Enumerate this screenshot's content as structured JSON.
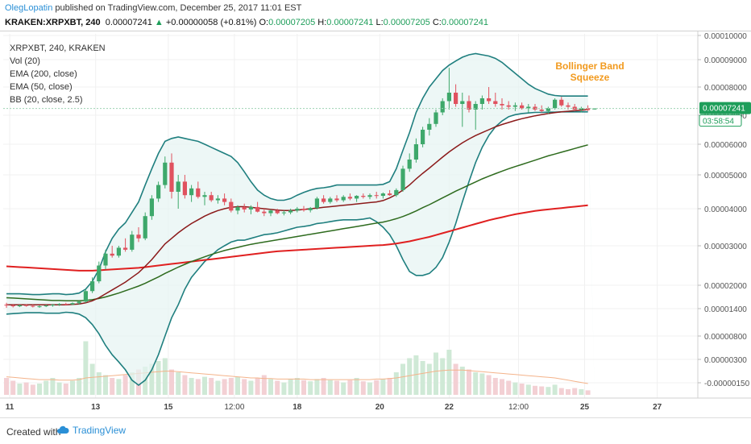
{
  "header": {
    "author": "OlegLopatin",
    "published": " published on TradingView.com, December 25, 2017 11:01 EST",
    "symbol": "KRAKEN:XRPXBT, 240",
    "last": "0.00007241",
    "arrow": "▲",
    "change": "+0.00000058 (+0.81%)",
    "o_label": "O:",
    "o_val": "0.00007205",
    "h_label": "H:",
    "h_val": "0.00007241",
    "l_label": "L:",
    "l_val": "0.00007205",
    "c_label": "C:",
    "c_val": "0.00007241"
  },
  "legend": {
    "title": "XRPXBT, 240, KRAKEN",
    "vol": "Vol (20)",
    "ema200": "EMA (200, close)",
    "ema50": "EMA (50, close)",
    "bb": "BB (20, close, 2.5)"
  },
  "annotation": {
    "line1": "Bollinger Band",
    "line2": "Squeeze",
    "color": "#f29a1e"
  },
  "price_tag": {
    "value": "0.00007241",
    "countdown": "03:58:54",
    "color": "#1e9e5a"
  },
  "footer": {
    "created": "Created with",
    "brand": "TradingView"
  },
  "colors": {
    "bull": "#3ea86b",
    "bear": "#e0525f",
    "bb": "#1f7f7f",
    "bb_fill": "#e6f4f2",
    "basis": "#8b1a1a",
    "ema50": "#2e6b1e",
    "ema200": "#e02020",
    "vol_ma": "#f4b38a"
  },
  "chart_data": {
    "type": "candlestick",
    "x_ticks": [
      "11",
      "13",
      "15",
      "12:00",
      "18",
      "20",
      "22",
      "12:00",
      "25",
      "27"
    ],
    "x_tick_pos": [
      0.5,
      13.5,
      24.5,
      34.5,
      44,
      56.5,
      67,
      77.5,
      87.5,
      98.5
    ],
    "y_ticks": [
      {
        "label": "0.00010000",
        "v": 0.0001
      },
      {
        "label": "0.00009000",
        "v": 9e-05
      },
      {
        "label": "0.00008000",
        "v": 8e-05
      },
      {
        "label": "0.00007000",
        "v": 7e-05
      },
      {
        "label": "0.00006000",
        "v": 6e-05
      },
      {
        "label": "0.00005000",
        "v": 5e-05
      },
      {
        "label": "0.00004000",
        "v": 4e-05
      },
      {
        "label": "0.00003000",
        "v": 3e-05
      },
      {
        "label": "0.00002000",
        "v": 2e-05
      },
      {
        "label": "0.00001400",
        "v": 1.4e-05
      },
      {
        "label": "0.00000800",
        "v": 8e-06
      },
      {
        "label": "0.00000300",
        "v": 3e-06
      },
      {
        "label": "-0.00000150",
        "v": -1.5e-06
      }
    ],
    "candles": [
      [
        1.5e-05,
        1.55e-05,
        1.42e-05,
        1.48e-05
      ],
      [
        1.48e-05,
        1.52e-05,
        1.43e-05,
        1.46e-05
      ],
      [
        1.46e-05,
        1.5e-05,
        1.44e-05,
        1.49e-05
      ],
      [
        1.49e-05,
        1.51e-05,
        1.45e-05,
        1.47e-05
      ],
      [
        1.47e-05,
        1.5e-05,
        1.43e-05,
        1.45e-05
      ],
      [
        1.45e-05,
        1.48e-05,
        1.42e-05,
        1.46e-05
      ],
      [
        1.46e-05,
        1.5e-05,
        1.44e-05,
        1.48e-05
      ],
      [
        1.48e-05,
        1.52e-05,
        1.45e-05,
        1.5e-05
      ],
      [
        1.5e-05,
        1.54e-05,
        1.47e-05,
        1.52e-05
      ],
      [
        1.52e-05,
        1.55e-05,
        1.48e-05,
        1.51e-05
      ],
      [
        1.51e-05,
        1.56e-05,
        1.49e-05,
        1.54e-05
      ],
      [
        1.54e-05,
        1.6e-05,
        1.5e-05,
        1.58e-05
      ],
      [
        1.58e-05,
        1.9e-05,
        1.55e-05,
        1.85e-05
      ],
      [
        1.85e-05,
        2.2e-05,
        1.8e-05,
        2.1e-05
      ],
      [
        2.1e-05,
        2.6e-05,
        2.05e-05,
        2.5e-05
      ],
      [
        2.5e-05,
        2.9e-05,
        2.4e-05,
        2.8e-05
      ],
      [
        2.8e-05,
        3e-05,
        2.7e-05,
        2.75e-05
      ],
      [
        2.75e-05,
        3e-05,
        2.7e-05,
        2.95e-05
      ],
      [
        2.95e-05,
        3.2e-05,
        2.85e-05,
        2.9e-05
      ],
      [
        2.9e-05,
        3.4e-05,
        2.85e-05,
        3.3e-05
      ],
      [
        3.3e-05,
        3.5e-05,
        3.1e-05,
        3.2e-05
      ],
      [
        3.2e-05,
        3.9e-05,
        3.15e-05,
        3.8e-05
      ],
      [
        3.8e-05,
        4.4e-05,
        3.7e-05,
        4.3e-05
      ],
      [
        4.3e-05,
        4.8e-05,
        4.2e-05,
        4.7e-05
      ],
      [
        4.7e-05,
        5.6e-05,
        4.6e-05,
        5.4e-05
      ],
      [
        5.4e-05,
        5.7e-05,
        4.3e-05,
        4.5e-05
      ],
      [
        4.5e-05,
        5e-05,
        4e-05,
        4.8e-05
      ],
      [
        4.8e-05,
        5e-05,
        4.3e-05,
        4.4e-05
      ],
      [
        4.4e-05,
        4.7e-05,
        4.2e-05,
        4.6e-05
      ],
      [
        4.6e-05,
        4.8e-05,
        4.3e-05,
        4.35e-05
      ],
      [
        4.35e-05,
        4.5e-05,
        4.1e-05,
        4.4e-05
      ],
      [
        4.4e-05,
        4.5e-05,
        4.2e-05,
        4.25e-05
      ],
      [
        4.25e-05,
        4.4e-05,
        4.15e-05,
        4.3e-05
      ],
      [
        4.3e-05,
        4.45e-05,
        4.1e-05,
        4.2e-05
      ],
      [
        4.2e-05,
        4.3e-05,
        3.9e-05,
        3.95e-05
      ],
      [
        3.95e-05,
        4.1e-05,
        3.85e-05,
        4.05e-05
      ],
      [
        4.05e-05,
        4.15e-05,
        3.9e-05,
        3.98e-05
      ],
      [
        3.98e-05,
        4.1e-05,
        3.85e-05,
        4.05e-05
      ],
      [
        4.05e-05,
        4.2e-05,
        3.9e-05,
        3.92e-05
      ],
      [
        3.92e-05,
        4e-05,
        3.8e-05,
        3.88e-05
      ],
      [
        3.88e-05,
        3.98e-05,
        3.8e-05,
        3.95e-05
      ],
      [
        3.95e-05,
        4e-05,
        3.85e-05,
        3.88e-05
      ],
      [
        3.88e-05,
        3.95e-05,
        3.82e-05,
        3.9e-05
      ],
      [
        3.9e-05,
        4e-05,
        3.85e-05,
        3.95e-05
      ],
      [
        3.95e-05,
        4.05e-05,
        3.9e-05,
        4e-05
      ],
      [
        4e-05,
        4.08e-05,
        3.92e-05,
        3.96e-05
      ],
      [
        3.96e-05,
        4.05e-05,
        3.9e-05,
        4.02e-05
      ],
      [
        4.02e-05,
        4.35e-05,
        3.98e-05,
        4.3e-05
      ],
      [
        4.3e-05,
        4.4e-05,
        4.15e-05,
        4.2e-05
      ],
      [
        4.2e-05,
        4.35e-05,
        4.15e-05,
        4.3e-05
      ],
      [
        4.3e-05,
        4.4e-05,
        4.2e-05,
        4.25e-05
      ],
      [
        4.25e-05,
        4.4e-05,
        4.2e-05,
        4.35e-05
      ],
      [
        4.35e-05,
        4.45e-05,
        4.25e-05,
        4.3e-05
      ],
      [
        4.3e-05,
        4.4e-05,
        4.2e-05,
        4.38e-05
      ],
      [
        4.38e-05,
        4.45e-05,
        4.3e-05,
        4.35e-05
      ],
      [
        4.35e-05,
        4.45e-05,
        4.28e-05,
        4.4e-05
      ],
      [
        4.4e-05,
        4.5e-05,
        4.3e-05,
        4.38e-05
      ],
      [
        4.38e-05,
        4.48e-05,
        4.3e-05,
        4.45e-05
      ],
      [
        4.45e-05,
        4.55e-05,
        4.38e-05,
        4.4e-05
      ],
      [
        4.4e-05,
        4.6e-05,
        4.35e-05,
        4.55e-05
      ],
      [
        4.55e-05,
        5.3e-05,
        4.5e-05,
        5.2e-05
      ],
      [
        5.2e-05,
        5.7e-05,
        5.1e-05,
        5.5e-05
      ],
      [
        5.5e-05,
        6.2e-05,
        5.4e-05,
        6e-05
      ],
      [
        6e-05,
        6.6e-05,
        5.9e-05,
        6.5e-05
      ],
      [
        6.5e-05,
        6.9e-05,
        6.3e-05,
        6.7e-05
      ],
      [
        6.7e-05,
        7.2e-05,
        6.6e-05,
        7.1e-05
      ],
      [
        7.1e-05,
        7.6e-05,
        7e-05,
        7.5e-05
      ],
      [
        7.5e-05,
        8.7e-05,
        7.2e-05,
        7.8e-05
      ],
      [
        7.8e-05,
        8.1e-05,
        7.3e-05,
        7.4e-05
      ],
      [
        7.4e-05,
        7.8e-05,
        6.6e-05,
        7.5e-05
      ],
      [
        7.5e-05,
        7.7e-05,
        7.1e-05,
        7.2e-05
      ],
      [
        7.2e-05,
        7.5e-05,
        6.5e-05,
        7.4e-05
      ],
      [
        7.4e-05,
        7.7e-05,
        7.2e-05,
        7.6e-05
      ],
      [
        7.6e-05,
        8e-05,
        7.4e-05,
        7.5e-05
      ],
      [
        7.5e-05,
        7.8e-05,
        7.3e-05,
        7.4e-05
      ],
      [
        7.4e-05,
        7.6e-05,
        7.2e-05,
        7.35e-05
      ],
      [
        7.35e-05,
        7.5e-05,
        7.2e-05,
        7.3e-05
      ],
      [
        7.3e-05,
        7.45e-05,
        7.15e-05,
        7.35e-05
      ],
      [
        7.35e-05,
        7.45e-05,
        7.2e-05,
        7.25e-05
      ],
      [
        7.25e-05,
        7.4e-05,
        7.1e-05,
        7.3e-05
      ],
      [
        7.3e-05,
        7.4e-05,
        7.15e-05,
        7.2e-05
      ],
      [
        7.2e-05,
        7.35e-05,
        7.1e-05,
        7.15e-05
      ],
      [
        7.15e-05,
        7.3e-05,
        7.05e-05,
        7.25e-05
      ],
      [
        7.25e-05,
        7.6e-05,
        7.2e-05,
        7.55e-05
      ],
      [
        7.55e-05,
        7.65e-05,
        7.3e-05,
        7.35e-05
      ],
      [
        7.35e-05,
        7.45e-05,
        7.2e-05,
        7.3e-05
      ],
      [
        7.3e-05,
        7.4e-05,
        7.15e-05,
        7.2e-05
      ],
      [
        7.2e-05,
        7.3e-05,
        7.1e-05,
        7.25e-05
      ],
      [
        7.25e-05,
        7.35e-05,
        7.15e-05,
        7.183e-05
      ],
      [
        7.205e-05,
        7.241e-05,
        7.205e-05,
        7.241e-05
      ]
    ],
    "bb_upper": [
      1.78e-05,
      1.78e-05,
      1.78e-05,
      1.77e-05,
      1.76e-05,
      1.76e-05,
      1.77e-05,
      1.78e-05,
      1.78e-05,
      1.76e-05,
      1.77e-05,
      1.8e-05,
      1.9e-05,
      2.1e-05,
      2.4e-05,
      2.85e-05,
      3.2e-05,
      3.45e-05,
      3.62e-05,
      3.9e-05,
      4.2e-05,
      4.7e-05,
      5.2e-05,
      5.7e-05,
      6.1e-05,
      6.2e-05,
      6.25e-05,
      6.2e-05,
      6.15e-05,
      6.1e-05,
      6e-05,
      5.9e-05,
      5.8e-05,
      5.7e-05,
      5.6e-05,
      5.4e-05,
      5.1e-05,
      4.8e-05,
      4.55e-05,
      4.4e-05,
      4.3e-05,
      4.25e-05,
      4.25e-05,
      4.3e-05,
      4.4e-05,
      4.48e-05,
      4.55e-05,
      4.6e-05,
      4.62e-05,
      4.65e-05,
      4.7e-05,
      4.7e-05,
      4.7e-05,
      4.7e-05,
      4.7e-05,
      4.7e-05,
      4.7e-05,
      4.72e-05,
      4.8e-05,
      5.2e-05,
      5.8e-05,
      6.4e-05,
      7.1e-05,
      7.6e-05,
      8e-05,
      8.3e-05,
      8.6e-05,
      8.8e-05,
      8.95e-05,
      9.1e-05,
      9.2e-05,
      9.25e-05,
      9.2e-05,
      9.15e-05,
      9.05e-05,
      8.9e-05,
      8.7e-05,
      8.5e-05,
      8.3e-05,
      8.1e-05,
      7.95e-05,
      7.85e-05,
      7.75e-05,
      7.7e-05,
      7.68e-05,
      7.68e-05,
      7.68e-05,
      7.68e-05,
      7.68e-05
    ],
    "bb_lower": [
      1.28e-05,
      1.29e-05,
      1.3e-05,
      1.31e-05,
      1.31e-05,
      1.31e-05,
      1.3e-05,
      1.3e-05,
      1.3e-05,
      1.32e-05,
      1.31e-05,
      1.28e-05,
      1.2e-05,
      1.05e-05,
      8.5e-06,
      6e-06,
      4e-06,
      2.5e-06,
      1e-06,
      -1e-06,
      -2e-06,
      -1e-06,
      1e-06,
      4e-06,
      8e-06,
      1.2e-05,
      1.5e-05,
      1.9e-05,
      2.2e-05,
      2.4e-05,
      2.6e-05,
      2.75e-05,
      2.9e-05,
      3e-05,
      3.1e-05,
      3.15e-05,
      3.15e-05,
      3.2e-05,
      3.25e-05,
      3.3e-05,
      3.32e-05,
      3.35e-05,
      3.4e-05,
      3.45e-05,
      3.5e-05,
      3.52e-05,
      3.55e-05,
      3.6e-05,
      3.62e-05,
      3.65e-05,
      3.68e-05,
      3.7e-05,
      3.7e-05,
      3.7e-05,
      3.72e-05,
      3.75e-05,
      3.65e-05,
      3.5e-05,
      3.3e-05,
      3e-05,
      2.65e-05,
      2.35e-05,
      2.25e-05,
      2.25e-05,
      2.3e-05,
      2.45e-05,
      2.7e-05,
      3.1e-05,
      3.6e-05,
      4.2e-05,
      4.8e-05,
      5.4e-05,
      5.9e-05,
      6.3e-05,
      6.6e-05,
      6.8e-05,
      6.95e-05,
      7.02e-05,
      7.06e-05,
      7.08e-05,
      7.1e-05,
      7.1e-05,
      7.11e-05,
      7.11e-05,
      7.12e-05,
      7.12e-05,
      7.12e-05,
      7.12e-05,
      7.12e-05
    ],
    "bb_basis": [
      1.5e-05,
      1.5e-05,
      1.5e-05,
      1.5e-05,
      1.5e-05,
      1.5e-05,
      1.5e-05,
      1.5e-05,
      1.5e-05,
      1.5e-05,
      1.51e-05,
      1.52e-05,
      1.55e-05,
      1.6e-05,
      1.68e-05,
      1.78e-05,
      1.88e-05,
      1.98e-05,
      2.08e-05,
      2.2e-05,
      2.32e-05,
      2.48e-05,
      2.65e-05,
      2.85e-05,
      3.05e-05,
      3.2e-05,
      3.35e-05,
      3.48e-05,
      3.6e-05,
      3.7e-05,
      3.8e-05,
      3.88e-05,
      3.95e-05,
      4e-05,
      4.04e-05,
      4.06e-05,
      4.06e-05,
      4.04e-05,
      4.02e-05,
      4e-05,
      3.98e-05,
      3.96e-05,
      3.95e-05,
      3.95e-05,
      3.96e-05,
      3.98e-05,
      4e-05,
      4.02e-05,
      4.04e-05,
      4.06e-05,
      4.08e-05,
      4.1e-05,
      4.12e-05,
      4.14e-05,
      4.16e-05,
      4.18e-05,
      4.2e-05,
      4.24e-05,
      4.32e-05,
      4.42e-05,
      4.55e-05,
      4.7e-05,
      4.88e-05,
      5.05e-05,
      5.22e-05,
      5.4e-05,
      5.58e-05,
      5.75e-05,
      5.9e-05,
      6.05e-05,
      6.18e-05,
      6.3e-05,
      6.4e-05,
      6.5e-05,
      6.6e-05,
      6.68e-05,
      6.75e-05,
      6.82e-05,
      6.88e-05,
      6.93e-05,
      6.98e-05,
      7.02e-05,
      7.06e-05,
      7.09e-05,
      7.12e-05,
      7.14e-05,
      7.16e-05,
      7.18e-05,
      7.2e-05
    ],
    "ema50": [
      1.68e-05,
      1.67e-05,
      1.66e-05,
      1.65e-05,
      1.64e-05,
      1.63e-05,
      1.62e-05,
      1.61e-05,
      1.61e-05,
      1.6e-05,
      1.6e-05,
      1.6e-05,
      1.61e-05,
      1.63e-05,
      1.66e-05,
      1.7e-05,
      1.75e-05,
      1.8e-05,
      1.86e-05,
      1.92e-05,
      1.98e-05,
      2.05e-05,
      2.13e-05,
      2.21e-05,
      2.3e-05,
      2.38e-05,
      2.46e-05,
      2.53e-05,
      2.6e-05,
      2.66e-05,
      2.72e-05,
      2.78e-05,
      2.83e-05,
      2.88e-05,
      2.92e-05,
      2.96e-05,
      3e-05,
      3.04e-05,
      3.07e-05,
      3.1e-05,
      3.13e-05,
      3.16e-05,
      3.19e-05,
      3.22e-05,
      3.25e-05,
      3.28e-05,
      3.31e-05,
      3.34e-05,
      3.37e-05,
      3.4e-05,
      3.43e-05,
      3.46e-05,
      3.49e-05,
      3.52e-05,
      3.55e-05,
      3.58e-05,
      3.61e-05,
      3.64e-05,
      3.68e-05,
      3.73e-05,
      3.79e-05,
      3.86e-05,
      3.94e-05,
      4.03e-05,
      4.12e-05,
      4.22e-05,
      4.32e-05,
      4.42e-05,
      4.52e-05,
      4.61e-05,
      4.7e-05,
      4.79e-05,
      4.88e-05,
      4.96e-05,
      5.04e-05,
      5.12e-05,
      5.2e-05,
      5.27e-05,
      5.34e-05,
      5.41e-05,
      5.48e-05,
      5.55e-05,
      5.62e-05,
      5.68e-05,
      5.74e-05,
      5.8e-05,
      5.86e-05,
      5.92e-05,
      5.98e-05
    ],
    "ema200": [
      2.48e-05,
      2.47e-05,
      2.46e-05,
      2.45e-05,
      2.44e-05,
      2.43e-05,
      2.42e-05,
      2.41e-05,
      2.4e-05,
      2.39e-05,
      2.38e-05,
      2.37e-05,
      2.37e-05,
      2.37e-05,
      2.38e-05,
      2.39e-05,
      2.4e-05,
      2.41e-05,
      2.42e-05,
      2.43e-05,
      2.44e-05,
      2.46e-05,
      2.48e-05,
      2.5e-05,
      2.52e-05,
      2.54e-05,
      2.56e-05,
      2.58e-05,
      2.6e-05,
      2.62e-05,
      2.64e-05,
      2.66e-05,
      2.68e-05,
      2.7e-05,
      2.72e-05,
      2.74e-05,
      2.76e-05,
      2.78e-05,
      2.8e-05,
      2.82e-05,
      2.84e-05,
      2.86e-05,
      2.87e-05,
      2.88e-05,
      2.89e-05,
      2.9e-05,
      2.91e-05,
      2.92e-05,
      2.93e-05,
      2.94e-05,
      2.95e-05,
      2.96e-05,
      2.97e-05,
      2.98e-05,
      2.99e-05,
      3e-05,
      3.01e-05,
      3.02e-05,
      3.04e-05,
      3.06e-05,
      3.09e-05,
      3.12e-05,
      3.16e-05,
      3.2e-05,
      3.24e-05,
      3.29e-05,
      3.34e-05,
      3.39e-05,
      3.44e-05,
      3.49e-05,
      3.54e-05,
      3.59e-05,
      3.64e-05,
      3.69e-05,
      3.73e-05,
      3.77e-05,
      3.81e-05,
      3.85e-05,
      3.88e-05,
      3.91e-05,
      3.94e-05,
      3.96e-05,
      3.98e-05,
      4e-05,
      4.02e-05,
      4.04e-05,
      4.06e-05,
      4.08e-05,
      4.1e-05
    ],
    "volume": [
      0.3,
      0.25,
      0.2,
      0.22,
      0.18,
      0.2,
      0.25,
      0.3,
      0.22,
      0.2,
      0.25,
      0.3,
      0.95,
      0.55,
      0.4,
      0.35,
      0.3,
      0.28,
      0.35,
      0.4,
      0.45,
      0.5,
      0.55,
      0.6,
      0.65,
      0.45,
      0.4,
      0.35,
      0.3,
      0.28,
      0.32,
      0.3,
      0.25,
      0.28,
      0.3,
      0.32,
      0.28,
      0.25,
      0.3,
      0.35,
      0.28,
      0.25,
      0.22,
      0.28,
      0.3,
      0.26,
      0.24,
      0.28,
      0.3,
      0.26,
      0.25,
      0.22,
      0.26,
      0.3,
      0.24,
      0.22,
      0.26,
      0.28,
      0.3,
      0.4,
      0.55,
      0.65,
      0.7,
      0.6,
      0.55,
      0.75,
      0.65,
      0.8,
      0.55,
      0.5,
      0.45,
      0.4,
      0.38,
      0.35,
      0.3,
      0.28,
      0.25,
      0.22,
      0.2,
      0.18,
      0.16,
      0.15,
      0.14,
      0.18,
      0.12,
      0.1,
      0.12,
      0.1,
      0.08
    ],
    "vol_ma": [
      0.32,
      0.31,
      0.3,
      0.29,
      0.28,
      0.27,
      0.27,
      0.27,
      0.26,
      0.26,
      0.26,
      0.27,
      0.3,
      0.31,
      0.32,
      0.33,
      0.34,
      0.35,
      0.36,
      0.37,
      0.38,
      0.39,
      0.4,
      0.41,
      0.42,
      0.42,
      0.41,
      0.4,
      0.39,
      0.38,
      0.37,
      0.36,
      0.35,
      0.34,
      0.33,
      0.32,
      0.31,
      0.3,
      0.3,
      0.29,
      0.29,
      0.28,
      0.28,
      0.28,
      0.28,
      0.28,
      0.27,
      0.27,
      0.27,
      0.27,
      0.27,
      0.27,
      0.27,
      0.27,
      0.27,
      0.27,
      0.28,
      0.28,
      0.29,
      0.3,
      0.32,
      0.34,
      0.36,
      0.38,
      0.4,
      0.42,
      0.43,
      0.44,
      0.44,
      0.44,
      0.43,
      0.42,
      0.41,
      0.4,
      0.39,
      0.38,
      0.37,
      0.36,
      0.35,
      0.34,
      0.33,
      0.32,
      0.31,
      0.3,
      0.28,
      0.26,
      0.24,
      0.22,
      0.2
    ]
  }
}
